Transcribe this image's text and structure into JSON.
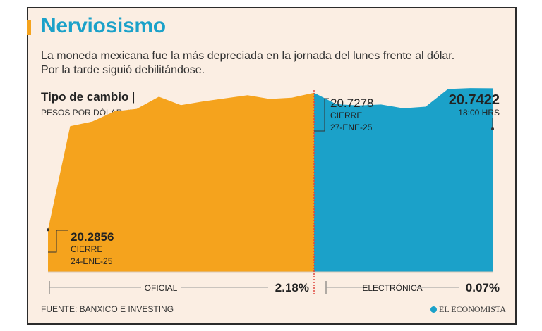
{
  "headline": "Nerviosismo",
  "subtitle_line1": "La moneda mexicana fue la más depreciada en la jornada del lunes frente al dólar.",
  "subtitle_line2": "Por la tarde siguió debilitándose.",
  "chart_title": "Tipo de cambio",
  "chart_title_sep": "|",
  "chart_unit": "PESOS POR DÓLAR, INTRADÍA",
  "source": "FUENTE: BANXICO E INVESTING",
  "logo_text": "EL ECONOMISTA",
  "chart_data": {
    "type": "area",
    "title": "Tipo de cambio",
    "ylabel": "PESOS POR DÓLAR, INTRADÍA",
    "ylim": [
      20.15,
      20.8
    ],
    "colors": {
      "oficial": "#f5a31d",
      "electronica": "#1ba1c9"
    },
    "series": [
      {
        "name": "OFICIAL",
        "change": "2.18%",
        "values": [
          20.2856,
          20.62,
          20.635,
          20.668,
          20.676,
          20.715,
          20.688,
          20.7,
          20.71,
          20.72,
          20.708,
          20.712,
          20.7278
        ]
      },
      {
        "name": "ELECTRÓNICA",
        "change": "0.07%",
        "values": [
          20.7278,
          20.691,
          20.687,
          20.69,
          20.678,
          20.683,
          20.74,
          20.743,
          20.7422
        ]
      }
    ],
    "annotations": {
      "start": {
        "value": "20.2856",
        "line1": "CIERRE",
        "line2": "24-ENE-25"
      },
      "mid": {
        "value": "20.7278",
        "line1": "CIERRE",
        "line2": "27-ENE-25"
      },
      "end": {
        "value": "20.7422",
        "line1": "18:00 HRS"
      }
    }
  }
}
